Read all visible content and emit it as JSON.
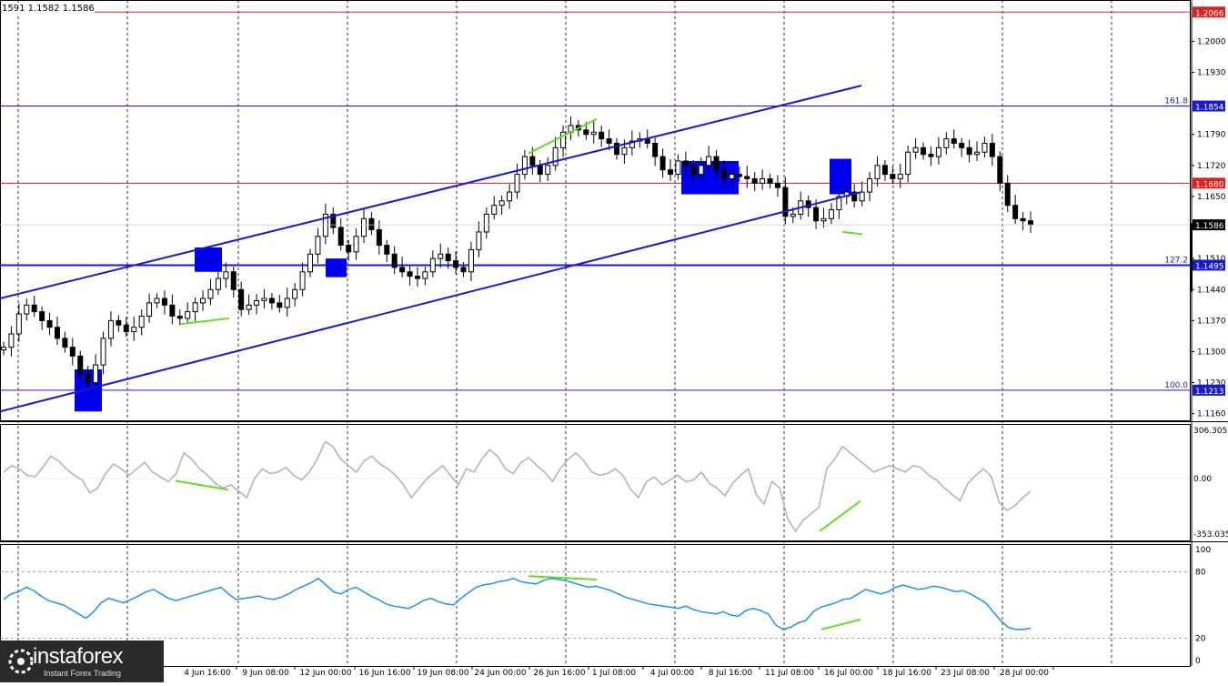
{
  "header": {
    "ohlc_text": "1591 1.1582 1.1586"
  },
  "logo": {
    "brand": "instaforex",
    "tagline": "Instant Forex Trading"
  },
  "colors": {
    "candle": "#000000",
    "channel": "#1a1acd",
    "level_blue": "#1a1acd",
    "level_red": "#e02020",
    "box": "#0000ee",
    "divergence": "#66dd22",
    "cci_line": "#b4b4b4",
    "rsi_line": "#1e90ff",
    "price_tag_red": "#e02020",
    "price_tag_blue": "#1a1acd",
    "price_tag_current": "#000000"
  },
  "chart_data": [
    {
      "type": "line",
      "name": "main",
      "instrument_note": "candlestick price chart",
      "ylim": [
        1.1145,
        1.2085
      ],
      "y_ticks": [
        "1.2066",
        "1.2000",
        "1.1930",
        "1.1854",
        "1.1790",
        "1.1720",
        "1.1680",
        "1.1650",
        "1.1586",
        "1.1510",
        "1.1495",
        "1.1440",
        "1.1370",
        "1.1300",
        "1.1230",
        "1.1213",
        "1.1160"
      ],
      "x_ticks": [
        "4 Jun 16:00",
        "9 Jun 08:00",
        "12 Jun 00:00",
        "16 Jun 16:00",
        "19 Jun 08:00",
        "24 Jun 00:00",
        "26 Jun 16:00",
        "1 Jul 08:00",
        "4 Jul 00:00",
        "8 Jul 16:00",
        "11 Jul 08:00",
        "16 Jul 00:00",
        "18 Jul 16:00",
        "23 Jul 08:00",
        "28 Jul 00:00"
      ],
      "x_tick_first_partial": "0",
      "levels": [
        {
          "value": 1.2066,
          "label": "1.2066",
          "color": "red",
          "fib": ""
        },
        {
          "value": 1.1854,
          "label": "1.1854",
          "color": "blue",
          "fib": "161.8"
        },
        {
          "value": 1.168,
          "label": "1.1680",
          "color": "red",
          "fib": ""
        },
        {
          "value": 1.1495,
          "label": "1.1495",
          "color": "blue",
          "fib": "127.2"
        },
        {
          "value": 1.1213,
          "label": "1.1213",
          "color": "blue",
          "fib": "100.0"
        }
      ],
      "current_price": "1.1586",
      "closes": [
        1.131,
        1.134,
        1.1385,
        1.1405,
        1.139,
        1.137,
        1.1355,
        1.133,
        1.131,
        1.129,
        1.125,
        1.123,
        1.127,
        1.133,
        1.137,
        1.136,
        1.1345,
        1.1355,
        1.138,
        1.141,
        1.142,
        1.1405,
        1.138,
        1.1375,
        1.139,
        1.141,
        1.142,
        1.144,
        1.1465,
        1.148,
        1.144,
        1.1395,
        1.1405,
        1.1415,
        1.142,
        1.141,
        1.14,
        1.142,
        1.144,
        1.148,
        1.152,
        1.156,
        1.161,
        1.158,
        1.154,
        1.1525,
        1.156,
        1.16,
        1.1575,
        1.154,
        1.152,
        1.149,
        1.148,
        1.147,
        1.1465,
        1.148,
        1.151,
        1.152,
        1.1505,
        1.149,
        1.148,
        1.153,
        1.157,
        1.161,
        1.163,
        1.164,
        1.166,
        1.17,
        1.174,
        1.172,
        1.17,
        1.172,
        1.176,
        1.1795,
        1.181,
        1.18,
        1.179,
        1.1795,
        1.178,
        1.177,
        1.1745,
        1.176,
        1.1775,
        1.178,
        1.177,
        1.174,
        1.171,
        1.17,
        1.173,
        1.172,
        1.17,
        1.172,
        1.174,
        1.171,
        1.169,
        1.17,
        1.1695,
        1.169,
        1.168,
        1.169,
        1.168,
        1.167,
        1.1605,
        1.161,
        1.164,
        1.1625,
        1.1595,
        1.16,
        1.162,
        1.165,
        1.166,
        1.164,
        1.166,
        1.169,
        1.172,
        1.17,
        1.169,
        1.17,
        1.175,
        1.176,
        1.1745,
        1.174,
        1.176,
        1.178,
        1.177,
        1.176,
        1.1745,
        1.175,
        1.177,
        1.174,
        1.168,
        1.163,
        1.16,
        1.1595,
        1.1586
      ],
      "channel": {
        "upper": [
          [
            0,
            1.142
          ],
          [
            947,
            1.19
          ]
        ],
        "lower": [
          [
            0,
            1.1165
          ],
          [
            947,
            1.166
          ]
        ]
      },
      "boxes": [
        {
          "x0": 82,
          "x1": 112,
          "y0": 1.126,
          "y1": 1.1165
        },
        {
          "x0": 214,
          "x1": 244,
          "y0": 1.1535,
          "y1": 1.148
        },
        {
          "x0": 358,
          "x1": 381,
          "y0": 1.151,
          "y1": 1.1468
        },
        {
          "x0": 749,
          "x1": 812,
          "y0": 1.173,
          "y1": 1.1655
        },
        {
          "x0": 912,
          "x1": 936,
          "y0": 1.1735,
          "y1": 1.1655
        }
      ],
      "divergence_main": [
        {
          "p1": [
            198,
            1.1362
          ],
          "p2": [
            252,
            1.1375
          ]
        },
        {
          "p1": [
            581,
            1.1747
          ],
          "p2": [
            656,
            1.1825
          ]
        },
        {
          "p1": [
            926,
            1.157
          ],
          "p2": [
            948,
            1.1565
          ]
        }
      ]
    },
    {
      "type": "line",
      "name": "CCI",
      "ylim": [
        -353.0356,
        306.3051
      ],
      "tick_labels": [
        "306.3051",
        "0.00",
        "-353.0356"
      ],
      "values": [
        40,
        80,
        60,
        20,
        10,
        70,
        140,
        110,
        60,
        20,
        -10,
        -90,
        -60,
        30,
        90,
        60,
        20,
        60,
        100,
        40,
        10,
        -20,
        30,
        160,
        120,
        60,
        20,
        -30,
        -60,
        -40,
        -80,
        -120,
        0,
        60,
        30,
        40,
        70,
        20,
        -10,
        40,
        120,
        230,
        200,
        120,
        80,
        40,
        110,
        140,
        90,
        60,
        20,
        -40,
        -120,
        -60,
        0,
        40,
        80,
        20,
        -40,
        60,
        40,
        120,
        180,
        140,
        60,
        30,
        100,
        130,
        80,
        40,
        -20,
        60,
        120,
        160,
        110,
        40,
        20,
        30,
        60,
        20,
        -70,
        -120,
        -20,
        10,
        -40,
        -10,
        20,
        -20,
        -10,
        40,
        -30,
        -60,
        -110,
        -30,
        20,
        60,
        -100,
        -160,
        -20,
        -60,
        -250,
        -330,
        -260,
        -220,
        -180,
        60,
        120,
        200,
        160,
        120,
        80,
        40,
        60,
        80,
        60,
        40,
        80,
        70,
        20,
        -10,
        -60,
        -100,
        -140,
        -30,
        20,
        60,
        10,
        -150,
        -200,
        -170,
        -120,
        -80
      ]
    },
    {
      "type": "line",
      "name": "RSI",
      "ylim": [
        0,
        100
      ],
      "tick_labels": [
        "100",
        "80",
        "20",
        "0"
      ],
      "levels": [
        80,
        20
      ],
      "values": [
        55,
        60,
        62,
        66,
        63,
        58,
        54,
        52,
        50,
        46,
        42,
        38,
        44,
        52,
        56,
        54,
        52,
        55,
        58,
        62,
        64,
        60,
        56,
        54,
        56,
        58,
        60,
        62,
        64,
        66,
        60,
        55,
        56,
        57,
        58,
        56,
        55,
        57,
        60,
        64,
        67,
        70,
        74,
        68,
        62,
        60,
        64,
        66,
        62,
        58,
        55,
        51,
        49,
        48,
        47,
        50,
        54,
        56,
        53,
        51,
        50,
        56,
        61,
        66,
        68,
        69,
        71,
        72,
        74,
        71,
        70,
        69,
        72,
        74,
        73,
        72,
        70,
        68,
        66,
        67,
        65,
        63,
        60,
        57,
        55,
        53,
        51,
        50,
        49,
        48,
        47,
        49,
        46,
        44,
        43,
        42,
        44,
        41,
        40,
        45,
        47,
        45,
        42,
        32,
        28,
        30,
        34,
        36,
        44,
        48,
        50,
        52,
        55,
        56,
        60,
        64,
        62,
        60,
        62,
        66,
        68,
        66,
        64,
        65,
        67,
        66,
        64,
        62,
        63,
        60,
        56,
        52,
        44,
        36,
        30,
        28,
        28,
        29
      ]
    }
  ],
  "divergences_cci": [
    {
      "p1": [
        193,
        -15
      ],
      "p2": [
        251,
        -70
      ]
    },
    {
      "p1": [
        901,
        -330
      ],
      "p2": [
        946,
        -140
      ]
    }
  ],
  "divergences_rsi": [
    {
      "p1": [
        581,
        76
      ],
      "p2": [
        656,
        73
      ]
    },
    {
      "p1": [
        903,
        28
      ],
      "p2": [
        946,
        37
      ]
    }
  ]
}
